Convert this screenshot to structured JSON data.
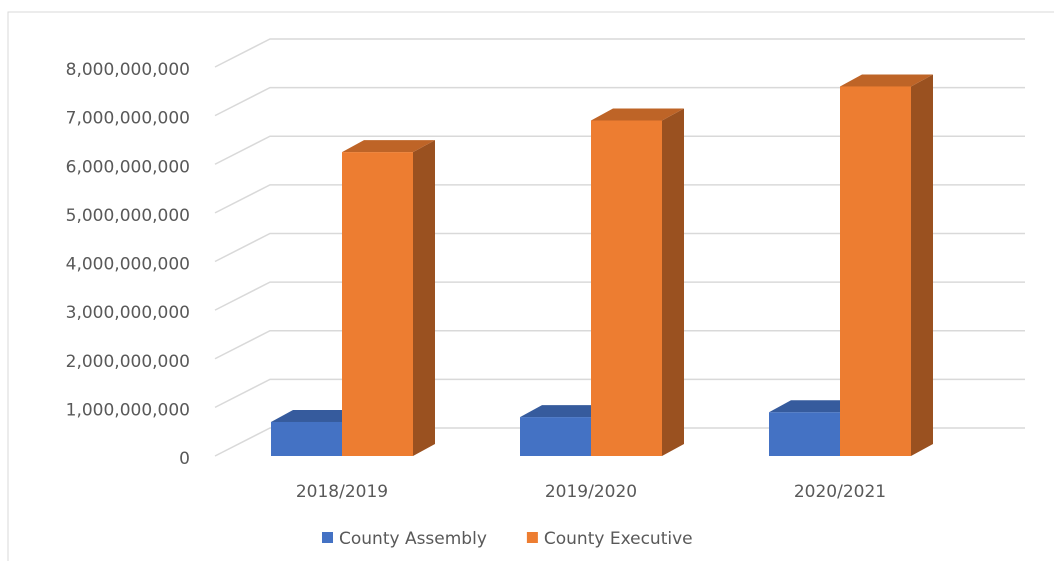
{
  "chart_data": {
    "type": "bar3d",
    "categories": [
      "2018/2019",
      "2019/2020",
      "2020/2021"
    ],
    "series": [
      {
        "name": "County Assembly",
        "color": "#4472c4",
        "values": [
          700000000,
          800000000,
          900000000
        ]
      },
      {
        "name": "County Executive",
        "color": "#ed7d31",
        "values": [
          6250000000,
          6900000000,
          7600000000
        ]
      }
    ],
    "ylim": [
      0,
      8000000000
    ],
    "yticks": [
      {
        "value": 0,
        "label": "0"
      },
      {
        "value": 1000000000,
        "label": "1,000,000,000"
      },
      {
        "value": 2000000000,
        "label": "2,000,000,000"
      },
      {
        "value": 3000000000,
        "label": "3,000,000,000"
      },
      {
        "value": 4000000000,
        "label": "4,000,000,000"
      },
      {
        "value": 5000000000,
        "label": "5,000,000,000"
      },
      {
        "value": 6000000000,
        "label": "6,000,000,000"
      },
      {
        "value": 7000000000,
        "label": "7,000,000,000"
      },
      {
        "value": 8000000000,
        "label": "8,000,000,000"
      }
    ],
    "grid": true,
    "legend": "bottom"
  }
}
